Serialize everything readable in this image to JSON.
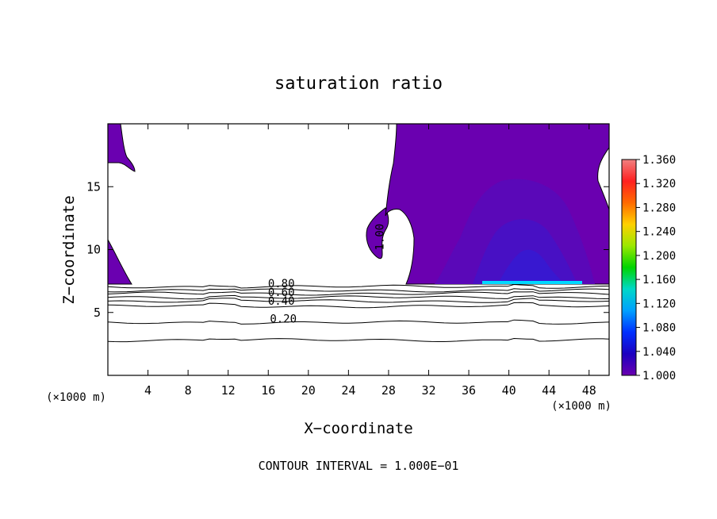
{
  "chart_data": {
    "type": "heatmap",
    "title": "saturation ratio",
    "xlabel": "X−coordinate",
    "ylabel": "Z−coordinate",
    "x_unit_left": "(×1000 m)",
    "x_unit_right": "(×1000 m)",
    "xlim": [
      0,
      50
    ],
    "ylim": [
      0,
      20
    ],
    "x_ticks": [
      4,
      8,
      12,
      16,
      20,
      24,
      28,
      32,
      36,
      40,
      44,
      48
    ],
    "x_tick_labels": [
      "4",
      "8",
      "12",
      "16",
      "20",
      "24",
      "28",
      "32",
      "36",
      "40",
      "44",
      "48"
    ],
    "y_ticks": [
      5,
      10,
      15
    ],
    "y_tick_labels": [
      "5",
      "10",
      "15"
    ],
    "colorbar": {
      "min": 1.0,
      "max": 1.36,
      "labels": [
        "1.360",
        "1.320",
        "1.280",
        "1.240",
        "1.200",
        "1.160",
        "1.120",
        "1.080",
        "1.040",
        "1.000"
      ],
      "colors": [
        "#f08080",
        "#ff2020",
        "#ff6a00",
        "#ffd000",
        "#9be800",
        "#00d400",
        "#00d8c8",
        "#00a0ff",
        "#0030ff",
        "#1c00c0",
        "#6a00b0"
      ]
    },
    "fill_colors": {
      "base": "#6a00b0",
      "level1": "#5a08b8",
      "level2": "#4810c4",
      "level3": "#3818d0",
      "peak": "#00d8ff"
    },
    "contour_labels": [
      {
        "text": "0.80",
        "x": 17.3,
        "y": 7.0
      },
      {
        "text": "0.60",
        "x": 17.3,
        "y": 6.3
      },
      {
        "text": "0.40",
        "x": 17.3,
        "y": 5.6
      },
      {
        "text": "0.20",
        "x": 17.5,
        "y": 4.2
      },
      {
        "text": "1.00",
        "x": 27.5,
        "y": 11.0,
        "rotate": -90
      }
    ],
    "contour_levels_z": [
      7.05,
      6.75,
      6.5,
      6.2,
      5.9,
      5.5,
      4.2,
      2.8
    ],
    "annotation": "CONTOUR INTERVAL = 1.000E−01"
  }
}
